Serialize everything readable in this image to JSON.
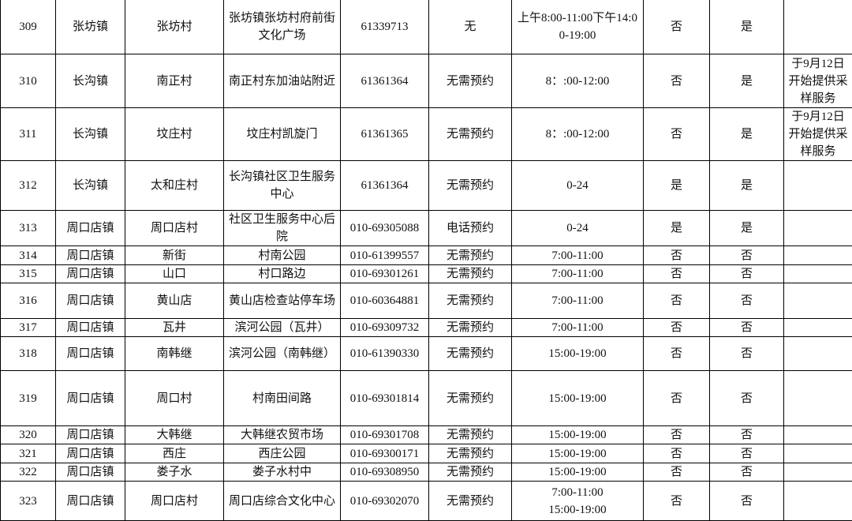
{
  "table": {
    "rows": [
      [
        "309",
        "张坊镇",
        "张坊村",
        "张坊镇张坊村府前街文化广场",
        "61339713",
        "无",
        "上午8:00-11:00下午14:00-19:00",
        "否",
        "是",
        null
      ],
      [
        "310",
        "长沟镇",
        "南正村",
        "南正村东加油站附近",
        "61361364",
        "无需预约",
        "8：:00-12:00",
        "否",
        "是",
        "于9月12日开始提供采样服务"
      ],
      [
        "311",
        "长沟镇",
        "坟庄村",
        "坟庄村凯旋门",
        "61361365",
        "无需预约",
        "8：:00-12:00",
        "否",
        "是",
        "于9月12日开始提供采样服务"
      ],
      [
        "312",
        "长沟镇",
        "太和庄村",
        "长沟镇社区卫生服务中心",
        "61361364",
        "无需预约",
        "0-24",
        "是",
        "是",
        null
      ],
      [
        "313",
        "周口店镇",
        "周口店村",
        "社区卫生服务中心后院",
        "010-69305088",
        "电话预约",
        "0-24",
        "是",
        "是",
        null
      ],
      [
        "314",
        "周口店镇",
        "新街",
        "村南公园",
        "010-61399557",
        "无需预约",
        "7:00-11:00",
        "否",
        "否",
        null
      ],
      [
        "315",
        "周口店镇",
        "山口",
        "村口路边",
        "010-69301261",
        "无需预约",
        "7:00-11:00",
        "否",
        "否",
        null
      ],
      [
        "316",
        "周口店镇",
        "黄山店",
        "黄山店检查站停车场",
        "010-60364881",
        "无需预约",
        "7:00-11:00",
        "否",
        "否",
        null
      ],
      [
        "317",
        "周口店镇",
        "瓦井",
        "滨河公园（瓦井）",
        "010-69309732",
        "无需预约",
        "7:00-11:00",
        "否",
        "否",
        null
      ],
      [
        "318",
        "周口店镇",
        "南韩继",
        "滨河公园（南韩继）",
        "010-61390330",
        "无需预约",
        "15:00-19:00",
        "否",
        "否",
        null
      ],
      [
        "319",
        "周口店镇",
        "周口村",
        "村南田间路",
        "010-69301814",
        "无需预约",
        "15:00-19:00",
        "否",
        "否",
        null
      ],
      [
        "320",
        "周口店镇",
        "大韩继",
        "大韩继农贸市场",
        "010-69301708",
        "无需预约",
        "15:00-19:00",
        "否",
        "否",
        null
      ],
      [
        "321",
        "周口店镇",
        "西庄",
        "西庄公园",
        "010-69300171",
        "无需预约",
        "15:00-19:00",
        "否",
        "否",
        null
      ],
      [
        "322",
        "周口店镇",
        "娄子水",
        "娄子水村中",
        "010-69308950",
        "无需预约",
        "15:00-19:00",
        "否",
        "否",
        null
      ],
      [
        "323",
        "周口店镇",
        "周口店村",
        "周口店综合文化中心",
        "010-69302070",
        "无需预约",
        "7:00-11:00\n15:00-19:00",
        "否",
        "否",
        null
      ]
    ]
  }
}
